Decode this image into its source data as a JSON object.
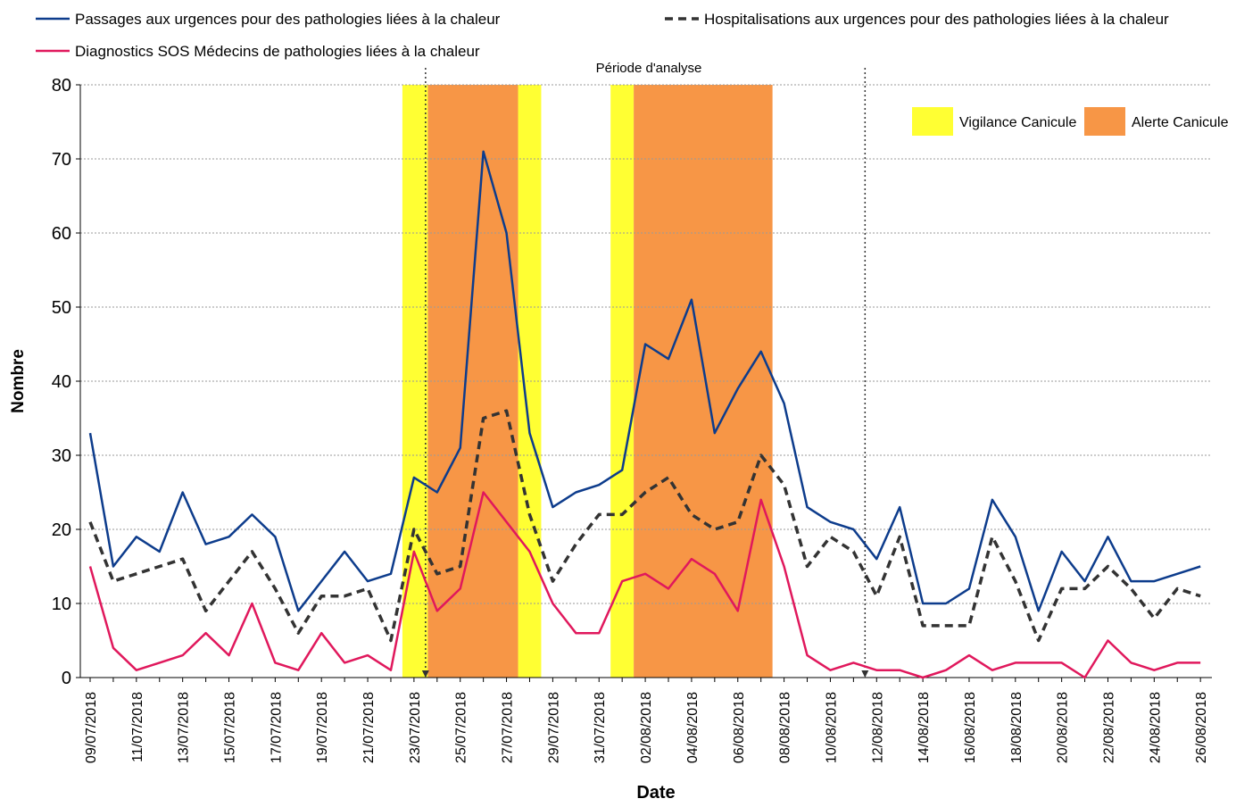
{
  "chart_data": {
    "type": "line",
    "x_label": "Date",
    "y_label": "Nombre",
    "categories": [
      "09/07/2018",
      null,
      "11/07/2018",
      null,
      "13/07/2018",
      null,
      "15/07/2018",
      null,
      "17/07/2018",
      null,
      "19/07/2018",
      null,
      "21/07/2018",
      null,
      "23/07/2018",
      null,
      "25/07/2018",
      null,
      "27/07/2018",
      null,
      "29/07/2018",
      null,
      "31/07/2018",
      null,
      "02/08/2018",
      null,
      "04/08/2018",
      null,
      "06/08/2018",
      null,
      "08/08/2018",
      null,
      "10/08/2018",
      null,
      "12/08/2018",
      null,
      "14/08/2018",
      null,
      "16/08/2018",
      null,
      "18/08/2018",
      null,
      "20/08/2018",
      null,
      "22/08/2018",
      null,
      "24/08/2018",
      null,
      "26/08/2018"
    ],
    "series": [
      {
        "name": "Passages aux urgences pour des pathologies liées à la chaleur",
        "color": "#0d3c8c",
        "dashed": false,
        "values": [
          33,
          15,
          19,
          17,
          25,
          18,
          19,
          22,
          19,
          9,
          13,
          17,
          13,
          14,
          27,
          25,
          31,
          71,
          60,
          33,
          23,
          25,
          26,
          28,
          45,
          43,
          51,
          33,
          39,
          44,
          37,
          23,
          21,
          20,
          16,
          23,
          10,
          10,
          12,
          24,
          19,
          9,
          17,
          13,
          19,
          13,
          13,
          14,
          15
        ]
      },
      {
        "name": "Hospitalisations aux urgences pour des pathologies liées à la chaleur",
        "color": "#333333",
        "dashed": true,
        "values": [
          21,
          13,
          14,
          15,
          16,
          9,
          13,
          17,
          12,
          6,
          11,
          11,
          12,
          5,
          20,
          14,
          15,
          35,
          36,
          22,
          13,
          18,
          22,
          22,
          25,
          27,
          22,
          20,
          21,
          30,
          26,
          15,
          19,
          17,
          11,
          19,
          7,
          7,
          7,
          19,
          13,
          5,
          12,
          12,
          15,
          12,
          8,
          12,
          11
        ]
      },
      {
        "name": "Diagnostics SOS Médecins de pathologies liées à la chaleur",
        "color": "#e0185c",
        "dashed": false,
        "values": [
          15,
          4,
          1,
          2,
          3,
          6,
          3,
          10,
          2,
          1,
          6,
          2,
          3,
          1,
          17,
          9,
          12,
          25,
          21,
          17,
          10,
          6,
          6,
          13,
          14,
          12,
          16,
          14,
          9,
          24,
          15,
          3,
          1,
          2,
          1,
          1,
          0,
          1,
          3,
          1,
          2,
          2,
          2,
          0,
          5,
          2,
          1,
          2,
          2
        ]
      }
    ],
    "periods": [
      {
        "name": "Vigilance Canicule",
        "color": "#ffff33",
        "spans": [
          [
            13.5,
            14.6
          ],
          [
            18.5,
            19.5
          ],
          [
            22.5,
            23.5
          ]
        ]
      },
      {
        "name": "Alerte Canicule",
        "color": "#f79646",
        "spans": [
          [
            14.6,
            18.5
          ],
          [
            23.5,
            29.5
          ]
        ]
      }
    ],
    "analysis_period": {
      "label": "Période d'analyse",
      "start": 14.5,
      "end": 33.5
    },
    "ylim": [
      0,
      80
    ],
    "yticks": [
      0,
      10,
      20,
      30,
      40,
      50,
      60,
      70,
      80
    ],
    "grid": true
  }
}
